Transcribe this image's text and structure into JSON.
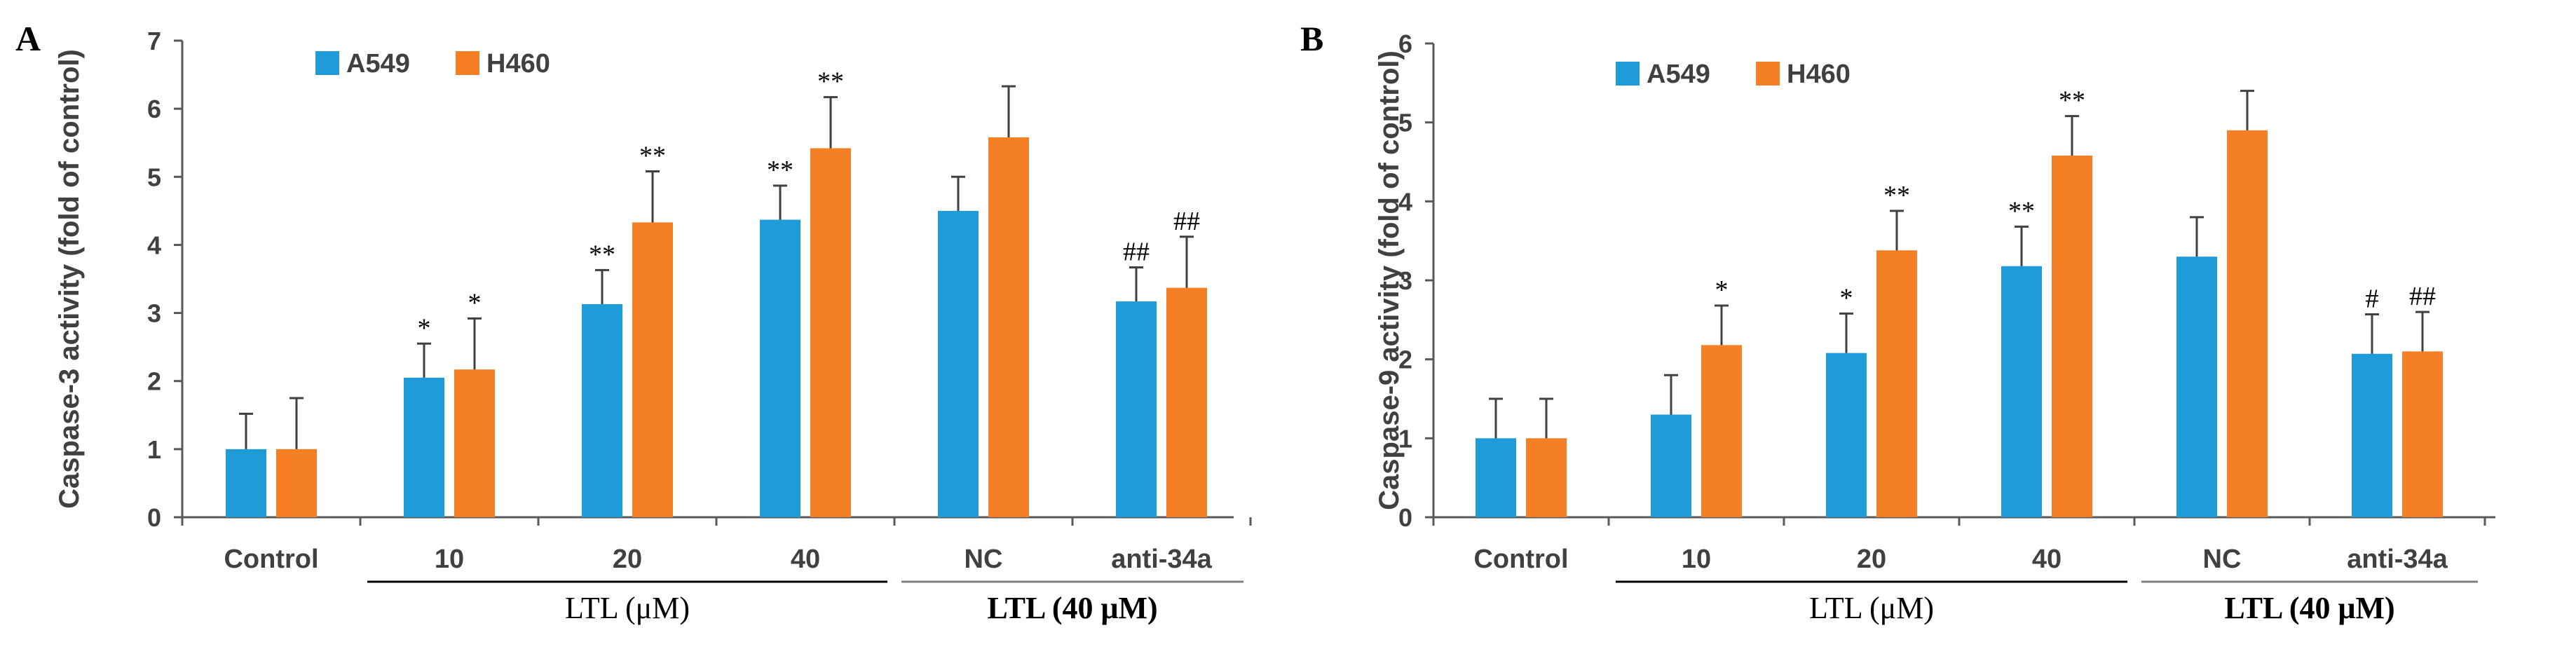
{
  "colors": {
    "a549": "#1f9bd7",
    "h460": "#f47f24",
    "axis": "#595959",
    "text": "#404040"
  },
  "chart_data": [
    {
      "type": "bar",
      "panel": "A",
      "ylabel": "Caspase-3 activity (fold of control)",
      "ylim": [
        0,
        7
      ],
      "yticks": [
        0,
        1,
        2,
        3,
        4,
        5,
        6,
        7
      ],
      "categories": [
        "Control",
        "10",
        "20",
        "40",
        "NC",
        "anti-34a"
      ],
      "series": [
        {
          "name": "A549",
          "values": [
            1.0,
            2.05,
            3.13,
            4.37,
            4.5,
            3.17
          ],
          "errors": [
            0.52,
            0.5,
            0.5,
            0.5,
            0.5,
            0.5
          ],
          "labels": [
            "",
            "*",
            "**",
            "**",
            "",
            "##"
          ]
        },
        {
          "name": "H460",
          "values": [
            1.0,
            2.17,
            4.33,
            5.42,
            5.58,
            3.37
          ],
          "errors": [
            0.75,
            0.75,
            0.75,
            0.75,
            0.75,
            0.75
          ],
          "labels": [
            "",
            "*",
            "**",
            "**",
            "",
            "##"
          ]
        }
      ],
      "groups": [
        {
          "label": "LTL (μM)",
          "from": 1,
          "to": 3,
          "bold": false
        },
        {
          "label": "LTL (40 μM)",
          "from": 4,
          "to": 5,
          "bold": true
        }
      ]
    },
    {
      "type": "bar",
      "panel": "B",
      "ylabel": "Caspase-9 activity (fold of control)",
      "ylim": [
        0,
        6
      ],
      "yticks": [
        0,
        1,
        2,
        3,
        4,
        5,
        6
      ],
      "categories": [
        "Control",
        "10",
        "20",
        "40",
        "NC",
        "anti-34a"
      ],
      "series": [
        {
          "name": "A549",
          "values": [
            1.0,
            1.3,
            2.08,
            3.18,
            3.3,
            2.07
          ],
          "errors": [
            0.5,
            0.5,
            0.5,
            0.5,
            0.5,
            0.5
          ],
          "labels": [
            "",
            "",
            "*",
            "**",
            "",
            "#"
          ]
        },
        {
          "name": "H460",
          "values": [
            1.0,
            2.18,
            3.38,
            4.58,
            4.9,
            2.1
          ],
          "errors": [
            0.5,
            0.5,
            0.5,
            0.5,
            0.5,
            0.5
          ],
          "labels": [
            "",
            "*",
            "**",
            "**",
            "",
            "##"
          ]
        }
      ],
      "groups": [
        {
          "label": "LTL (μM)",
          "from": 1,
          "to": 3,
          "bold": false
        },
        {
          "label": "LTL (40 μM)",
          "from": 4,
          "to": 5,
          "bold": true
        }
      ]
    }
  ]
}
